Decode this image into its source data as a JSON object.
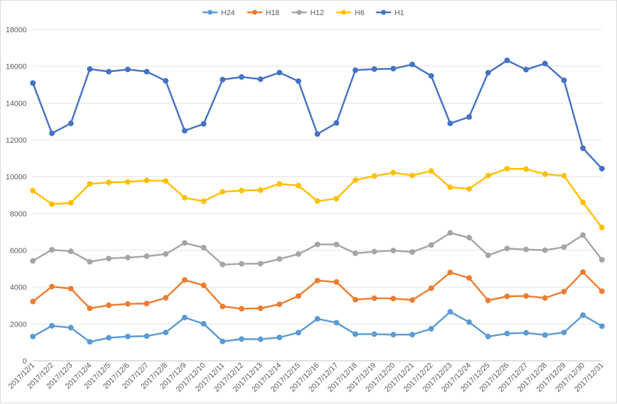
{
  "chart_data": {
    "type": "line",
    "title": "",
    "xlabel": "",
    "ylabel": "",
    "ylim": [
      0,
      18000
    ],
    "yticks": [
      0,
      2000,
      4000,
      6000,
      8000,
      10000,
      12000,
      14000,
      16000,
      18000
    ],
    "grid": true,
    "legend_position": "top",
    "categories": [
      "2017/12/1",
      "2017/12/2",
      "2017/12/3",
      "2017/12/4",
      "2017/12/5",
      "2017/12/6",
      "2017/12/7",
      "2017/12/8",
      "2017/12/9",
      "2017/12/10",
      "2017/12/11",
      "2017/12/12",
      "2017/12/13",
      "2017/12/14",
      "2017/12/15",
      "2017/12/16",
      "2017/12/17",
      "2017/12/18",
      "2017/12/19",
      "2017/12/20",
      "2017/12/21",
      "2017/12/22",
      "2017/12/23",
      "2017/12/24",
      "2017/12/25",
      "2017/12/26",
      "2017/12/27",
      "2017/12/28",
      "2017/12/29",
      "2017/12/30",
      "2017/12/31"
    ],
    "series": [
      {
        "name": "H24",
        "color": "#5b9bd5",
        "values": [
          1320,
          1900,
          1800,
          1030,
          1250,
          1320,
          1340,
          1540,
          2350,
          2010,
          1050,
          1180,
          1170,
          1270,
          1530,
          2280,
          2070,
          1450,
          1450,
          1420,
          1420,
          1740,
          2660,
          2100,
          1320,
          1480,
          1520,
          1400,
          1540,
          2480,
          1880
        ]
      },
      {
        "name": "H18",
        "color": "#ed7d31",
        "values": [
          3220,
          4030,
          3920,
          2850,
          3020,
          3090,
          3110,
          3420,
          4390,
          4100,
          2950,
          2830,
          2850,
          3070,
          3520,
          4360,
          4280,
          3320,
          3400,
          3380,
          3300,
          3940,
          4800,
          4500,
          3280,
          3500,
          3520,
          3410,
          3760,
          4820,
          3780
        ]
      },
      {
        "name": "H12",
        "color": "#a5a5a5",
        "values": [
          5430,
          6030,
          5950,
          5380,
          5560,
          5610,
          5680,
          5800,
          6400,
          6150,
          5230,
          5270,
          5280,
          5530,
          5800,
          6320,
          6320,
          5840,
          5930,
          5990,
          5910,
          6290,
          6950,
          6690,
          5730,
          6100,
          6050,
          6010,
          6180,
          6830,
          5490
        ]
      },
      {
        "name": "H6",
        "color": "#ffc000",
        "values": [
          9240,
          8510,
          8580,
          9610,
          9690,
          9720,
          9800,
          9770,
          8860,
          8670,
          9180,
          9250,
          9270,
          9610,
          9520,
          8680,
          8810,
          9820,
          10040,
          10220,
          10070,
          10310,
          9430,
          9340,
          10060,
          10440,
          10420,
          10140,
          10050,
          8610,
          7240
        ]
      },
      {
        "name": "H1",
        "color": "#4472c4",
        "values": [
          15090,
          12360,
          12900,
          15850,
          15710,
          15830,
          15710,
          15210,
          12500,
          12870,
          15280,
          15420,
          15300,
          15660,
          15190,
          12320,
          12920,
          15790,
          15850,
          15870,
          16100,
          15480,
          12900,
          13250,
          15650,
          16320,
          15820,
          16150,
          15240,
          11550,
          10440
        ]
      }
    ]
  }
}
